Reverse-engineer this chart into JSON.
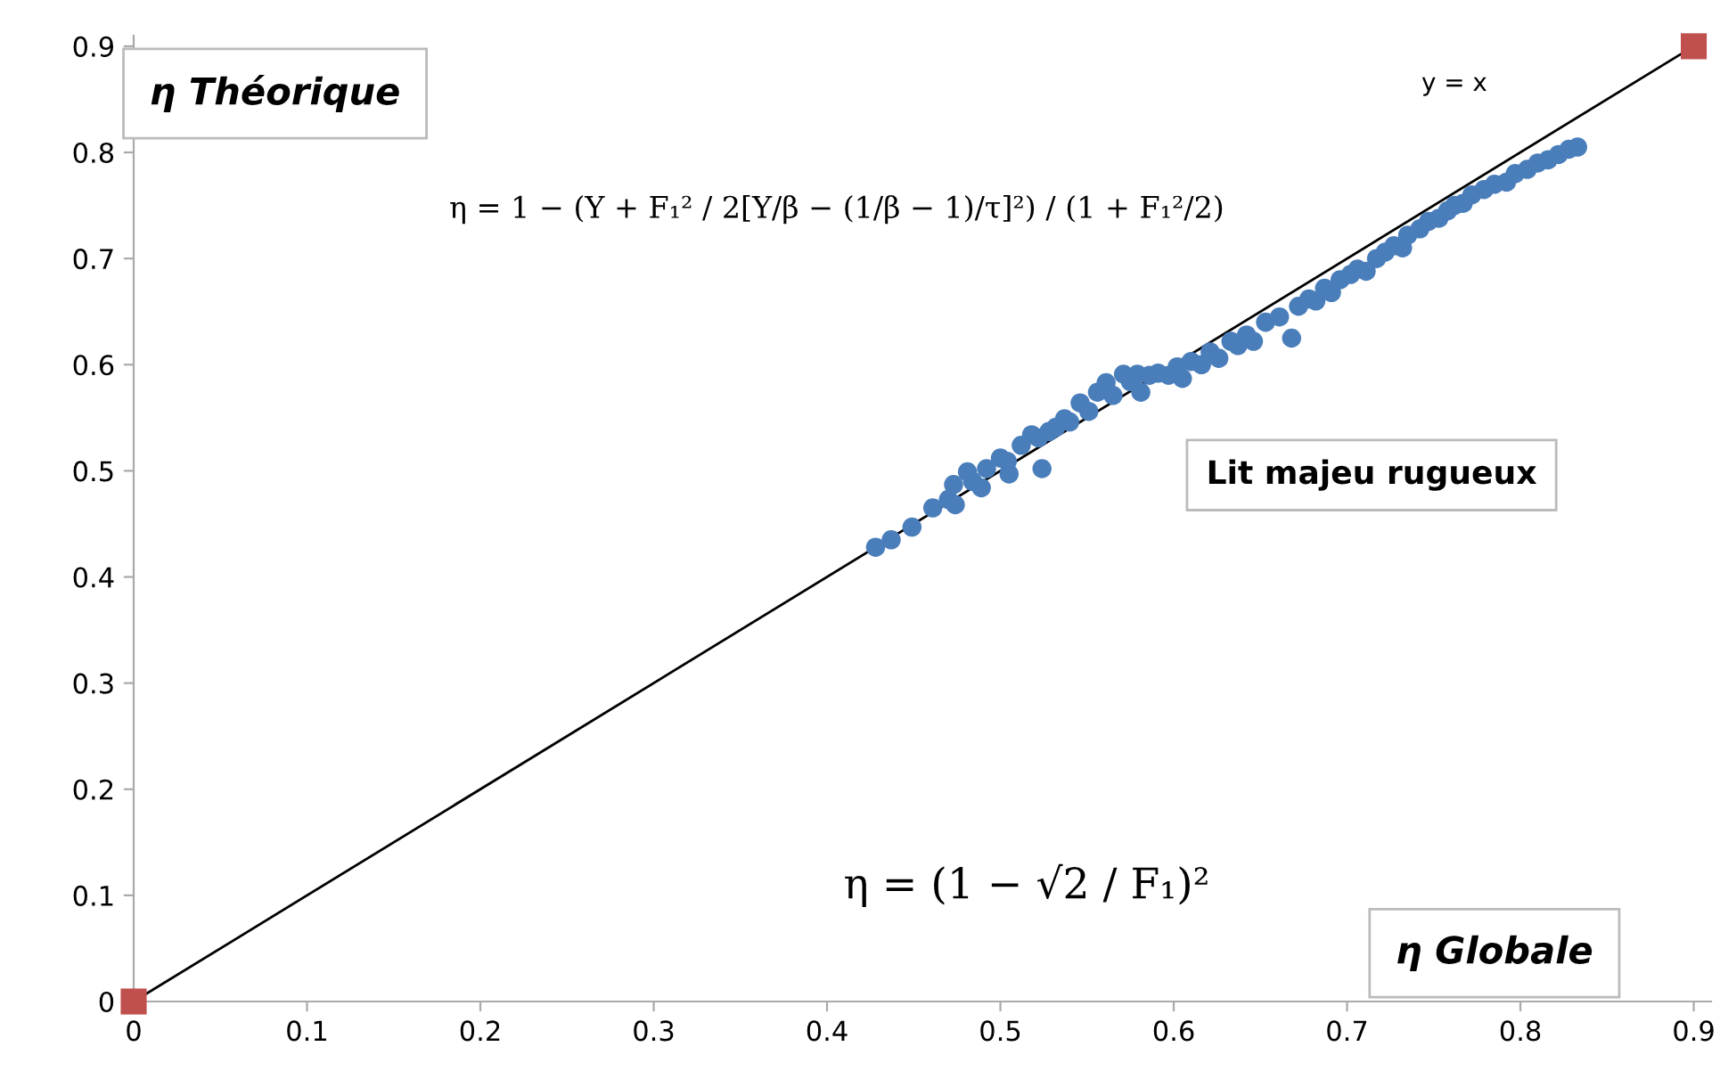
{
  "chart_data": {
    "type": "scatter",
    "xlabel": "η Globale",
    "ylabel": "η Théorique",
    "xlim": [
      0,
      0.91
    ],
    "ylim": [
      0,
      0.91
    ],
    "xticks": [
      0,
      0.1,
      0.2,
      0.3,
      0.4,
      0.5,
      0.6,
      0.7,
      0.8,
      0.9
    ],
    "yticks": [
      0,
      0.1,
      0.2,
      0.3,
      0.4,
      0.5,
      0.6,
      0.7,
      0.8,
      0.9
    ],
    "grid": false,
    "legend": false,
    "annotations": [
      "Lit majeu rugueux",
      "η = 1 − (Y + F₁² / 2[Y/β − (1/β − 1)/τ]²) / (1 + F₁²/2)",
      "η = (1 − √2 / F₁)²"
    ],
    "series": [
      {
        "color": "#4a7ebb",
        "marker": "circle",
        "x": [
          0.428,
          0.437,
          0.449,
          0.461,
          0.47,
          0.473,
          0.474,
          0.481,
          0.484,
          0.489,
          0.492,
          0.5,
          0.504,
          0.505,
          0.512,
          0.518,
          0.522,
          0.524,
          0.528,
          0.532,
          0.537,
          0.54,
          0.546,
          0.551,
          0.556,
          0.561,
          0.565,
          0.571,
          0.575,
          0.579,
          0.581,
          0.586,
          0.591,
          0.597,
          0.602,
          0.605,
          0.61,
          0.616,
          0.621,
          0.626,
          0.633,
          0.637,
          0.642,
          0.646,
          0.653,
          0.661,
          0.668,
          0.672,
          0.678,
          0.682,
          0.687,
          0.691,
          0.696,
          0.702,
          0.706,
          0.711,
          0.717,
          0.722,
          0.727,
          0.732,
          0.735,
          0.742,
          0.747,
          0.753,
          0.758,
          0.762,
          0.767,
          0.772,
          0.779,
          0.785,
          0.792,
          0.797,
          0.804,
          0.81,
          0.816,
          0.822,
          0.828,
          0.833
        ],
        "values": [
          0.428,
          0.435,
          0.447,
          0.465,
          0.473,
          0.487,
          0.468,
          0.499,
          0.49,
          0.484,
          0.502,
          0.512,
          0.509,
          0.497,
          0.524,
          0.534,
          0.531,
          0.502,
          0.537,
          0.541,
          0.549,
          0.546,
          0.564,
          0.556,
          0.574,
          0.583,
          0.571,
          0.591,
          0.584,
          0.591,
          0.574,
          0.59,
          0.592,
          0.59,
          0.598,
          0.587,
          0.603,
          0.6,
          0.612,
          0.606,
          0.622,
          0.618,
          0.628,
          0.622,
          0.64,
          0.645,
          0.625,
          0.655,
          0.662,
          0.66,
          0.672,
          0.668,
          0.68,
          0.685,
          0.69,
          0.688,
          0.7,
          0.706,
          0.712,
          0.71,
          0.722,
          0.728,
          0.735,
          0.738,
          0.745,
          0.75,
          0.752,
          0.76,
          0.765,
          0.77,
          0.772,
          0.78,
          0.784,
          0.79,
          0.793,
          0.798,
          0.803,
          0.805
        ]
      },
      {
        "type": "line",
        "name": "y = x",
        "color": "#000000",
        "marker": "none",
        "line_style": "solid",
        "x": [
          0,
          0.9
        ],
        "values": [
          0,
          0.9
        ]
      },
      {
        "type": "scatter",
        "color": "#c0504d",
        "marker": "square",
        "x": [
          0,
          0.9
        ],
        "values": [
          0,
          0.9
        ]
      }
    ]
  }
}
